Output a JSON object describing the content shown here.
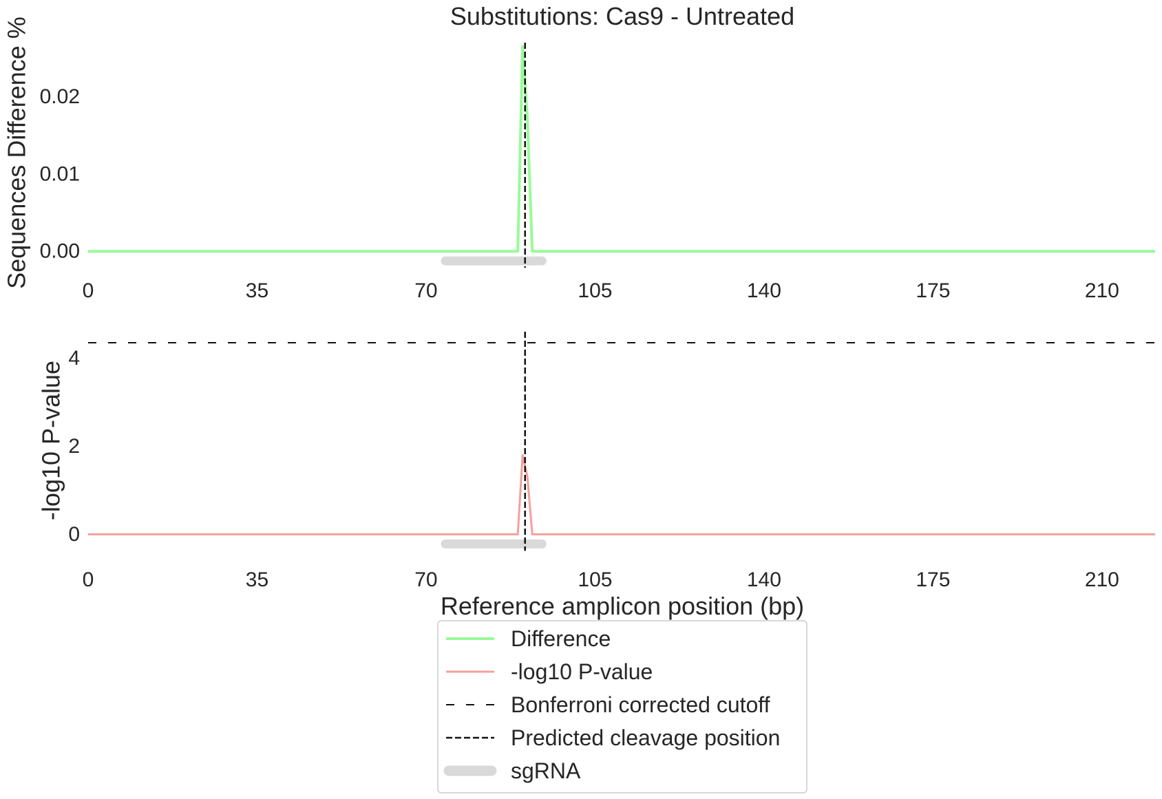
{
  "chart_data": {
    "type": "line",
    "title": "Substitutions: Cas9 - Untreated",
    "xlabel": "Reference amplicon position (bp)",
    "x_ticks": [
      0,
      35,
      70,
      105,
      140,
      175,
      210
    ],
    "xlim": [
      0,
      221
    ],
    "predicted_cleavage_position": 90.5,
    "sgrna_range": [
      74,
      94
    ],
    "panels": [
      {
        "ylabel": "Sequences Difference %",
        "y_ticks": [
          {
            "value": 0,
            "label": "0.00"
          },
          {
            "value": 0.01,
            "label": "0.01"
          },
          {
            "value": 0.02,
            "label": "0.02"
          }
        ],
        "ylim": [
          -0.0015,
          0.027
        ],
        "series": [
          {
            "name": "Difference",
            "color": "#98fb98",
            "points": [
              [
                0,
                0
              ],
              [
                89,
                0
              ],
              [
                90,
                0.0265
              ],
              [
                91,
                0.017
              ],
              [
                92,
                0
              ],
              [
                221,
                0
              ]
            ]
          }
        ]
      },
      {
        "ylabel": "-log10 P-value",
        "y_ticks": [
          {
            "value": 0,
            "label": "0"
          },
          {
            "value": 2,
            "label": "2"
          },
          {
            "value": 4,
            "label": "4"
          }
        ],
        "ylim": [
          -0.4,
          4.6
        ],
        "bonferroni_cutoff": 4.35,
        "series": [
          {
            "name": "-log10 P-value",
            "color": "#f4a09a",
            "points": [
              [
                0,
                0
              ],
              [
                89,
                0
              ],
              [
                90,
                1.8
              ],
              [
                91,
                1.3
              ],
              [
                92,
                0
              ],
              [
                221,
                0
              ]
            ]
          }
        ]
      }
    ],
    "legend": {
      "placement": "bottom-center",
      "entries": [
        {
          "label": "Difference",
          "style": "solid",
          "color": "#98fb98"
        },
        {
          "label": "-log10 P-value",
          "style": "solid",
          "color": "#f4a09a"
        },
        {
          "label": "Bonferroni corrected cutoff",
          "style": "dashed-wide",
          "color": "#111111"
        },
        {
          "label": "Predicted cleavage position",
          "style": "dashed",
          "color": "#111111"
        },
        {
          "label": "sgRNA",
          "style": "thick",
          "color": "#d9d9d9"
        }
      ]
    }
  }
}
